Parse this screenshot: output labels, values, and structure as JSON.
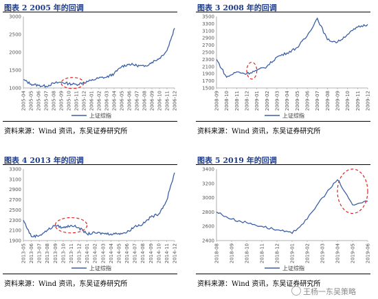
{
  "watermark": "王杨一东吴策略",
  "chart_data": [
    {
      "type": "line",
      "title": "图表 2 2005 年的回调",
      "source": "资料来源：Wind 资讯，东吴证券研究所",
      "series": [
        {
          "name": "上证综指",
          "color": "#3a5fa6",
          "x": [
            "2005-04",
            "2005-05",
            "2005-06",
            "2005-07",
            "2005-08",
            "2005-09",
            "2005-10",
            "2005-11",
            "2005-12",
            "2006-01",
            "2006-02",
            "2006-03",
            "2006-04",
            "2006-05",
            "2006-06",
            "2006-07",
            "2006-08",
            "2006-09",
            "2006-10",
            "2006-11",
            "2006-12"
          ],
          "values": [
            1230,
            1110,
            1070,
            1050,
            1130,
            1160,
            1120,
            1100,
            1150,
            1210,
            1280,
            1300,
            1400,
            1600,
            1670,
            1630,
            1600,
            1720,
            1830,
            2050,
            2675
          ]
        }
      ],
      "ylim": [
        1000,
        3000
      ],
      "yticks": [
        1000,
        1500,
        2000,
        2500,
        3000
      ],
      "xticks": [
        "2005-04",
        "2005-05",
        "2005-06",
        "2005-07",
        "2005-08",
        "2005-09",
        "2005-10",
        "2005-11",
        "2005-12",
        "2006-01",
        "2006-02",
        "2006-03",
        "2006-04",
        "2006-05",
        "2006-06",
        "2006-07",
        "2006-08",
        "2006-09",
        "2006-10",
        "2006-11",
        "2006-12"
      ],
      "highlight": {
        "x": [
          "2005-09",
          "2005-12"
        ],
        "y": [
          1000,
          1280
        ]
      }
    },
    {
      "type": "line",
      "title": "图表 3 2008 年的回调",
      "source": "资料来源：Wind 资讯，东吴证券研究所",
      "series": [
        {
          "name": "上证综指",
          "color": "#3a5fa6",
          "x": [
            "2008-09",
            "2008-10",
            "2008-11",
            "2008-12",
            "2009-01",
            "2009-02",
            "2009-03",
            "2009-04",
            "2009-05",
            "2009-06",
            "2009-07",
            "2009-08",
            "2009-09",
            "2009-10",
            "2009-11",
            "2009-12"
          ],
          "values": [
            2300,
            1800,
            1950,
            1900,
            1990,
            2100,
            2370,
            2480,
            2630,
            2960,
            3450,
            2850,
            2780,
            3000,
            3200,
            3280
          ]
        }
      ],
      "ylim": [
        1500,
        3500
      ],
      "yticks": [
        1500,
        1700,
        1900,
        2100,
        2300,
        2500,
        2700,
        2900,
        3100,
        3300,
        3500
      ],
      "xticks": [
        "2008-09",
        "2008-10",
        "2008-11",
        "2008-12",
        "2009-01",
        "2009-02",
        "2009-03",
        "2009-04",
        "2009-05",
        "2009-06",
        "2009-07",
        "2009-08",
        "2009-09",
        "2009-10",
        "2009-11",
        "2009-12"
      ],
      "highlight": {
        "x": [
          "2008-12",
          "2009-01"
        ],
        "y": [
          1750,
          2220
        ]
      }
    },
    {
      "type": "line",
      "title": "图表 4 2013 年的回调",
      "source": "资料来源：Wind 资讯，东吴证券研究所",
      "series": [
        {
          "name": "上证综指",
          "color": "#3a5fa6",
          "x": [
            "2013-05",
            "2013-06",
            "2013-07",
            "2013-08",
            "2013-09",
            "2013-10",
            "2013-11",
            "2013-12",
            "2014-01",
            "2014-02",
            "2014-03",
            "2014-04",
            "2014-05",
            "2014-06",
            "2014-07",
            "2014-08",
            "2014-09",
            "2014-10",
            "2014-11",
            "2014-12"
          ],
          "values": [
            2300,
            1980,
            2000,
            2100,
            2200,
            2150,
            2200,
            2150,
            2030,
            2050,
            2040,
            2030,
            2040,
            2060,
            2180,
            2220,
            2360,
            2420,
            2680,
            3230
          ]
        }
      ],
      "ylim": [
        1900,
        3300
      ],
      "yticks": [
        1900,
        2100,
        2300,
        2500,
        2700,
        2900,
        3100,
        3300
      ],
      "xticks": [
        "2013-05",
        "2013-06",
        "2013-07",
        "2013-08",
        "2013-09",
        "2013-10",
        "2013-11",
        "2013-12",
        "2014-01",
        "2014-02",
        "2014-03",
        "2014-04",
        "2014-05",
        "2014-06",
        "2014-07",
        "2014-08",
        "2014-09",
        "2014-10",
        "2014-11",
        "2014-12"
      ],
      "highlight": {
        "x": [
          "2013-09",
          "2014-01"
        ],
        "y": [
          2050,
          2350
        ]
      }
    },
    {
      "type": "line",
      "title": "图表 5 2019 年的回调",
      "source": "资料来源：Wind 资讯，东吴证券研究所",
      "series": [
        {
          "name": "上证综指",
          "color": "#3a5fa6",
          "x": [
            "2018-08",
            "2018-09",
            "2018-10",
            "2018-11",
            "2018-12",
            "2019-01",
            "2019-02",
            "2019-03",
            "2019-04",
            "2019-05",
            "2019-06"
          ],
          "values": [
            2800,
            2700,
            2650,
            2600,
            2550,
            2500,
            2700,
            3000,
            3250,
            2900,
            2950
          ]
        }
      ],
      "ylim": [
        2400,
        3400
      ],
      "yticks": [
        2400,
        2600,
        2800,
        3000,
        3200,
        3400
      ],
      "xticks": [
        "2018-08",
        "2018-09",
        "2018-10",
        "2018-11",
        "2018-12",
        "2019-01",
        "2019-02",
        "2019-03",
        "2019-04",
        "2019-05",
        "2019-06"
      ],
      "highlight": {
        "x": [
          "2019-04",
          "2019-06"
        ],
        "y": [
          2780,
          3400
        ]
      }
    }
  ]
}
